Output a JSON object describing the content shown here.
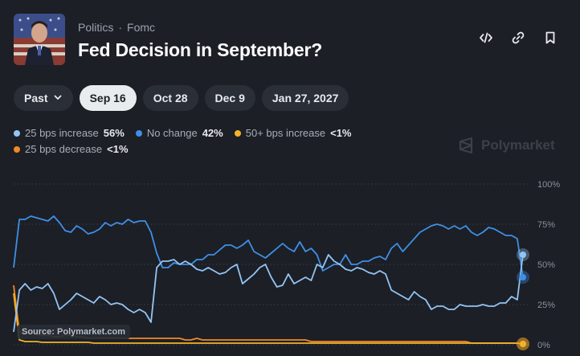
{
  "header": {
    "breadcrumb": [
      "Politics",
      "Fomc"
    ],
    "breadcrumb_separator": "·",
    "title": "Fed Decision in September?"
  },
  "actions": [
    {
      "icon": "code-icon"
    },
    {
      "icon": "link-icon"
    },
    {
      "icon": "bookmark-icon"
    }
  ],
  "chips": [
    {
      "label": "Past",
      "has_chevron": true,
      "active": false
    },
    {
      "label": "Sep 16",
      "active": true
    },
    {
      "label": "Oct 28",
      "active": false
    },
    {
      "label": "Dec 9",
      "active": false
    },
    {
      "label": "Jan 27, 2027",
      "active": false
    }
  ],
  "brand": {
    "label": "Polymarket"
  },
  "source": {
    "label": "Source: Polymarket.com"
  },
  "chart_data": {
    "type": "line",
    "y_ticks": [
      "100%",
      "75%",
      "50%",
      "25%",
      "0%"
    ],
    "ylim": [
      0,
      100
    ],
    "grid": true,
    "legend_placement": "top-left",
    "series": [
      {
        "name": "25 bps increase",
        "value_label": "56%",
        "color": "#93c5f4",
        "values": [
          8,
          34,
          38,
          34,
          36,
          35,
          38,
          32,
          22,
          25,
          28,
          32,
          30,
          28,
          26,
          30,
          28,
          25,
          26,
          25,
          22,
          20,
          22,
          20,
          14,
          48,
          52,
          52,
          53,
          50,
          52,
          50,
          47,
          46,
          48,
          46,
          44,
          45,
          48,
          50,
          38,
          41,
          44,
          48,
          50,
          42,
          36,
          37,
          44,
          38,
          40,
          42,
          40,
          50,
          48,
          56,
          52,
          50,
          47,
          46,
          48,
          47,
          45,
          44,
          46,
          44,
          34,
          32,
          30,
          28,
          33,
          30,
          28,
          22,
          24,
          24,
          22,
          22,
          25,
          24,
          24,
          24,
          25,
          24,
          24,
          26,
          26,
          30,
          28,
          56
        ]
      },
      {
        "name": "No change",
        "value_label": "42%",
        "color": "#3f8fe6",
        "values": [
          48,
          78,
          78,
          80,
          79,
          78,
          77,
          80,
          76,
          71,
          70,
          74,
          72,
          69,
          70,
          72,
          76,
          74,
          76,
          75,
          78,
          76,
          77,
          77,
          70,
          57,
          48,
          48,
          51,
          50,
          50,
          50,
          53,
          53,
          56,
          56,
          59,
          62,
          62,
          60,
          62,
          65,
          58,
          56,
          54,
          57,
          60,
          63,
          60,
          58,
          64,
          58,
          60,
          56,
          46,
          48,
          50,
          50,
          56,
          50,
          50,
          52,
          52,
          54,
          55,
          53,
          60,
          63,
          58,
          62,
          66,
          70,
          72,
          74,
          75,
          74,
          72,
          74,
          72,
          74,
          70,
          68,
          70,
          73,
          72,
          70,
          68,
          68,
          66,
          42
        ]
      },
      {
        "name": "50+ bps increase",
        "value_label": "<1%",
        "color": "#f0b429",
        "values": [
          32,
          3,
          2,
          2,
          2,
          1.5,
          1.5,
          1.5,
          1.5,
          1.5,
          1.5,
          1.5,
          1.5,
          1.5,
          1,
          1,
          1,
          1,
          1,
          1,
          1,
          1,
          1,
          1,
          1,
          1,
          1,
          1,
          1,
          1,
          1,
          1,
          1,
          1,
          1,
          1,
          1,
          1,
          1,
          1,
          1,
          1,
          1,
          1,
          1,
          1,
          1,
          1,
          1,
          1,
          1,
          1,
          1,
          1,
          1,
          1,
          1,
          1,
          1,
          1,
          1,
          1,
          1,
          1,
          1,
          1,
          1,
          1,
          1,
          1,
          1,
          1,
          1,
          1,
          1,
          1,
          1,
          1,
          1,
          1,
          1,
          1,
          1,
          1,
          1,
          1,
          1,
          1,
          1,
          0.5
        ]
      },
      {
        "name": "25 bps decrease",
        "value_label": "<1%",
        "color": "#f08a24",
        "values": [
          37,
          8,
          7,
          8,
          6,
          6,
          6,
          5,
          5,
          6,
          6,
          5,
          5,
          4,
          4,
          4,
          4,
          4,
          4,
          4,
          4,
          4,
          4,
          4,
          4,
          4,
          4,
          4,
          4,
          4,
          3,
          3,
          4,
          3,
          3,
          3,
          3,
          3,
          3,
          3,
          3,
          3,
          3,
          3,
          3,
          3,
          3,
          3,
          3,
          3,
          3,
          3,
          2,
          2,
          2,
          2,
          2,
          2,
          2,
          2,
          2,
          2,
          2,
          2,
          2,
          2,
          2,
          2,
          2,
          2,
          2,
          2,
          2,
          2,
          2,
          2,
          2,
          2,
          2,
          2,
          1,
          1,
          1,
          1,
          1,
          1,
          1,
          1,
          1,
          0.5
        ]
      }
    ]
  }
}
